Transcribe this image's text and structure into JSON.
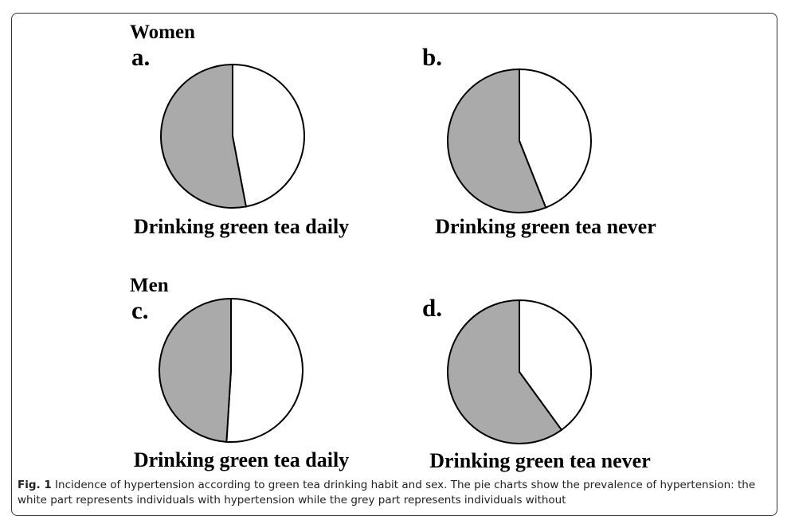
{
  "chart_data": [
    {
      "type": "pie",
      "group": "Women",
      "label": "a.",
      "title": "Drinking green tea daily",
      "values": [
        47,
        53
      ],
      "colors": [
        "#ffffff",
        "#aaaaaa"
      ]
    },
    {
      "type": "pie",
      "label": "b.",
      "title": "Drinking green tea never",
      "values": [
        44,
        56
      ],
      "colors": [
        "#ffffff",
        "#aaaaaa"
      ]
    },
    {
      "type": "pie",
      "group": "Men",
      "label": "c.",
      "title": "Drinking green tea daily",
      "values": [
        51,
        49
      ],
      "colors": [
        "#ffffff",
        "#aaaaaa"
      ]
    },
    {
      "type": "pie",
      "label": "d.",
      "title": "Drinking green tea never",
      "values": [
        40,
        60
      ],
      "colors": [
        "#ffffff",
        "#aaaaaa"
      ]
    }
  ],
  "caption": {
    "label": "Fig. 1",
    "text": "Incidence of hypertension according to green tea drinking habit and sex. The pie charts show the prevalence of hypertension: the white part represents individuals with hypertension while the grey part represents individuals without"
  }
}
